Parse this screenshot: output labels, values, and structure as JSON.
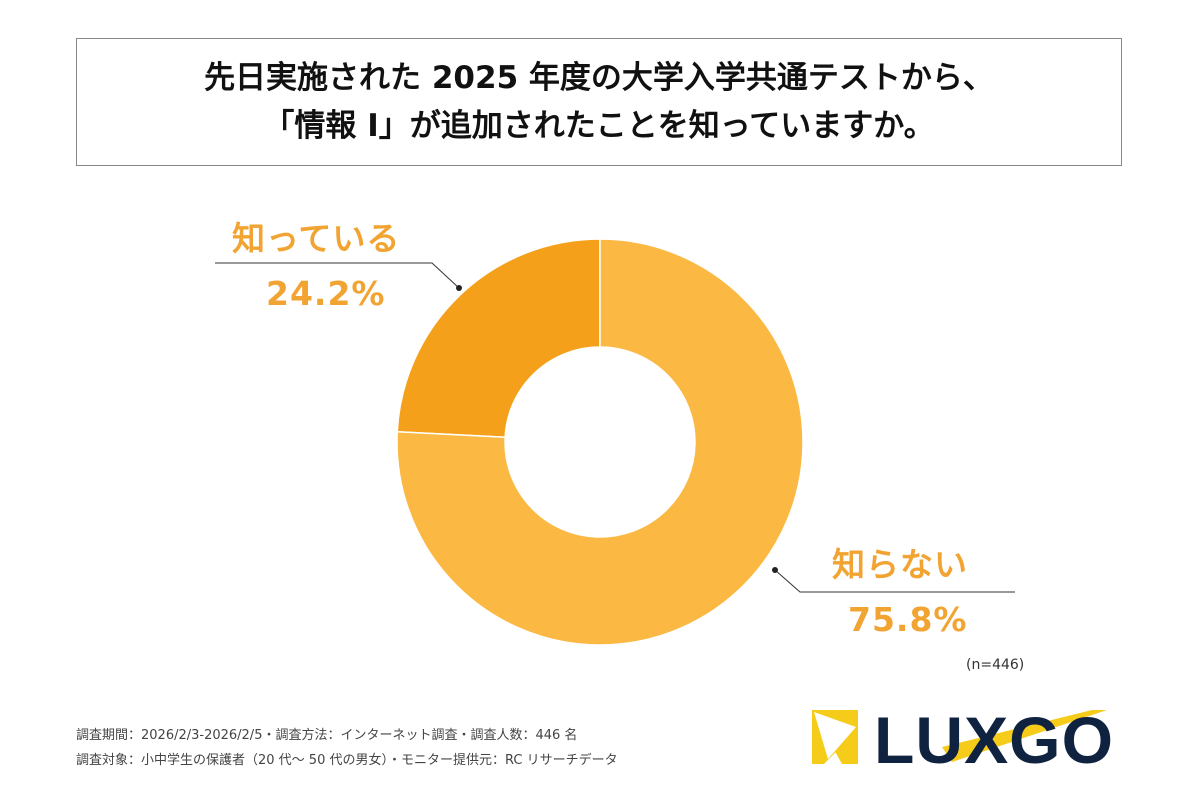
{
  "title_lines": [
    "先日実施された 2025 年度の大学入学共通テストから、",
    "「情報 I」が追加されたことを知っていますか。"
  ],
  "chart_data": {
    "type": "pie",
    "donut": true,
    "title": "先日実施された 2025 年度の大学入学共通テストから、「情報 I」が追加されたことを知っていますか。",
    "categories": [
      "知っている",
      "知らない"
    ],
    "values": [
      24.2,
      75.8
    ],
    "unit": "%",
    "data_labels": [
      "24.2%",
      "75.8%"
    ],
    "colors": [
      "#F5A01A",
      "#FBB843"
    ],
    "start": "12 o'clock, 知っている counter-clockwise",
    "sample_size": "(n=446)"
  },
  "footer": {
    "line1": "調査期間：2026/2/3-2026/2/5・調査方法：インターネット調査・調査人数：446 名",
    "line2": "調査対象：小中学生の保護者（20 代～ 50 代の男女）・モニター提供元：RC リサーチデータ"
  },
  "logo": {
    "text": "LUXGO",
    "colors": {
      "navy": "#0F2341",
      "yellow": "#F5CC1A"
    }
  }
}
